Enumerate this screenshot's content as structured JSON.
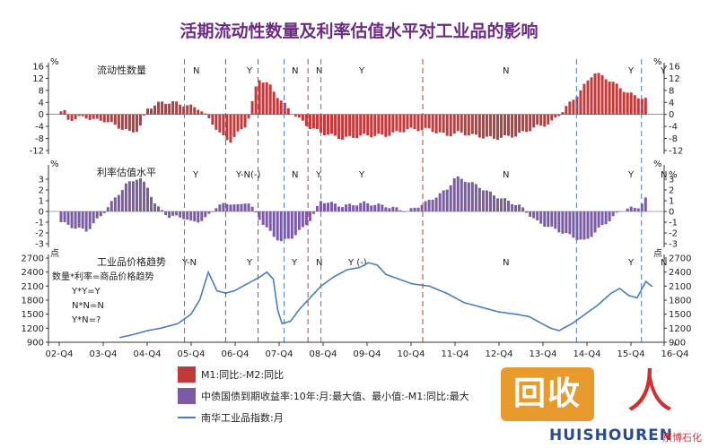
{
  "title": "活期流动性数量及利率估值水平对工业品的影响",
  "chart_data": {
    "type": "bar+line",
    "x_categories": [
      "02-Q4",
      "03-Q4",
      "04-Q4",
      "05-Q4",
      "06-Q4",
      "07-Q4",
      "08-Q4",
      "09-Q4",
      "10-Q4",
      "11-Q4",
      "12-Q4",
      "13-Q4",
      "14-Q4",
      "15-Q4",
      "16-Q4"
    ],
    "panels": [
      {
        "id": "liquidity",
        "title": "流动性数量",
        "unit": "%",
        "ylim": [
          -12,
          16
        ],
        "ticks": [
          "16",
          "12",
          "8",
          "4",
          "0",
          "-4",
          "-8",
          "-12"
        ],
        "tick_values": [
          16,
          12,
          8,
          4,
          0,
          -4,
          -8,
          -12
        ],
        "regimes": [
          "N",
          "Y",
          "N",
          "N",
          "Y",
          "N",
          "Y",
          "Y"
        ],
        "series_name": "M1:同比:-M2:同比",
        "color": "#c0393b",
        "anchors": [
          [
            0,
            1
          ],
          [
            0.08,
            1
          ],
          [
            0.15,
            -2
          ],
          [
            0.4,
            -1
          ],
          [
            0.6,
            -1
          ],
          [
            0.8,
            -2
          ],
          [
            1,
            -2
          ],
          [
            1.3,
            -4
          ],
          [
            1.6,
            -6
          ],
          [
            1.8,
            -5
          ],
          [
            2,
            2
          ],
          [
            2.3,
            4
          ],
          [
            2.6,
            4
          ],
          [
            2.9,
            3
          ],
          [
            3.2,
            2
          ],
          [
            3.5,
            -3
          ],
          [
            3.7,
            -7
          ],
          [
            3.9,
            -9
          ],
          [
            4.1,
            -6
          ],
          [
            4.3,
            -3
          ],
          [
            4.55,
            12
          ],
          [
            4.8,
            10
          ],
          [
            5.0,
            6
          ],
          [
            5.3,
            1
          ],
          [
            5.7,
            -4
          ],
          [
            6,
            -6
          ],
          [
            6.5,
            -8
          ],
          [
            7,
            -7
          ],
          [
            7.5,
            -7
          ],
          [
            8,
            -5
          ],
          [
            8.5,
            -5
          ],
          [
            8.9,
            -7
          ],
          [
            9.2,
            -6
          ],
          [
            9.5,
            -7
          ],
          [
            10,
            -8
          ],
          [
            10.5,
            -7
          ],
          [
            11,
            -4
          ],
          [
            11.3,
            -3
          ],
          [
            11.7,
            3
          ],
          [
            12,
            8
          ],
          [
            12.3,
            14
          ],
          [
            12.6,
            12
          ],
          [
            12.9,
            9
          ],
          [
            13.1,
            7
          ],
          [
            13.3,
            6
          ],
          [
            13.5,
            5
          ]
        ]
      },
      {
        "id": "rate",
        "title": "利率估值水平",
        "unit": "%",
        "ylim": [
          -3,
          4
        ],
        "ticks": [
          "3",
          "2",
          "1",
          "0",
          "-1",
          "-2",
          "-3"
        ],
        "tick_values": [
          3,
          2,
          1,
          0,
          -1,
          -2,
          -3
        ],
        "regimes": [
          "Y",
          "Y-N(-)",
          "N",
          "Y",
          "Y",
          "N",
          "Y",
          "N"
        ],
        "regime_tail": "%",
        "series_name": "中债国债到期收益率:10年:月:最大值、最小值:-M1:同比:最大",
        "color": "#7b5aa6",
        "anchors": [
          [
            0,
            -1
          ],
          [
            0.3,
            -1.5
          ],
          [
            0.6,
            -1.8
          ],
          [
            0.9,
            -0.5
          ],
          [
            1.2,
            1
          ],
          [
            1.5,
            2.5
          ],
          [
            1.8,
            3.2
          ],
          [
            2,
            2.2
          ],
          [
            2.2,
            0.5
          ],
          [
            2.5,
            -0.5
          ],
          [
            2.8,
            -0.5
          ],
          [
            3,
            -1
          ],
          [
            3.3,
            -0.8
          ],
          [
            3.6,
            0.5
          ],
          [
            3.9,
            0.8
          ],
          [
            4.1,
            0.5
          ],
          [
            4.3,
            1
          ],
          [
            4.6,
            -0.8
          ],
          [
            4.9,
            -2.3
          ],
          [
            5.1,
            -2.8
          ],
          [
            5.3,
            -2.5
          ],
          [
            5.6,
            -1.5
          ],
          [
            5.8,
            -0.5
          ],
          [
            6,
            1
          ],
          [
            6.5,
            0.5
          ],
          [
            7,
            0.8
          ],
          [
            7.5,
            0.5
          ],
          [
            8,
            0
          ],
          [
            8.5,
            1
          ],
          [
            8.9,
            2
          ],
          [
            9.1,
            3.2
          ],
          [
            9.4,
            2.8
          ],
          [
            9.7,
            2.2
          ],
          [
            10,
            1.5
          ],
          [
            10.3,
            1
          ],
          [
            10.6,
            0.5
          ],
          [
            11,
            -1
          ],
          [
            11.3,
            -1.5
          ],
          [
            11.6,
            -2
          ],
          [
            11.9,
            -2.5
          ],
          [
            12.1,
            -2.8
          ],
          [
            12.3,
            -2
          ],
          [
            12.6,
            -1
          ],
          [
            12.9,
            0
          ],
          [
            13.1,
            0.3
          ],
          [
            13.3,
            0.3
          ],
          [
            13.5,
            1.2
          ]
        ]
      },
      {
        "id": "price",
        "title": "工业品价格趋势",
        "unit": "点",
        "ylim": [
          900,
          2700
        ],
        "ticks": [
          "2700",
          "2400",
          "2100",
          "1800",
          "1500",
          "1200",
          "900"
        ],
        "tick_values": [
          2700,
          2400,
          2100,
          1800,
          1500,
          1200,
          900
        ],
        "regimes": [
          "Y-N",
          "Y",
          "Y",
          "N",
          "Y (-)",
          "N",
          "Y",
          "N"
        ],
        "series_name": "南华工业品指数:月",
        "color": "#4a7cc4",
        "anchors": [
          [
            1.35,
            1000
          ],
          [
            1.6,
            1050
          ],
          [
            2,
            1150
          ],
          [
            2.3,
            1200
          ],
          [
            2.7,
            1300
          ],
          [
            3,
            1500
          ],
          [
            3.2,
            1800
          ],
          [
            3.4,
            2400
          ],
          [
            3.6,
            2000
          ],
          [
            3.8,
            1950
          ],
          [
            4,
            2000
          ],
          [
            4.3,
            2150
          ],
          [
            4.6,
            2300
          ],
          [
            4.75,
            2400
          ],
          [
            4.9,
            2250
          ],
          [
            5.0,
            1600
          ],
          [
            5.1,
            1300
          ],
          [
            5.3,
            1350
          ],
          [
            5.5,
            1600
          ],
          [
            5.8,
            1900
          ],
          [
            6,
            2100
          ],
          [
            6.3,
            2300
          ],
          [
            6.6,
            2450
          ],
          [
            6.9,
            2500
          ],
          [
            7.1,
            2600
          ],
          [
            7.3,
            2550
          ],
          [
            7.5,
            2350
          ],
          [
            7.8,
            2250
          ],
          [
            8.1,
            2150
          ],
          [
            8.5,
            2100
          ],
          [
            8.9,
            1950
          ],
          [
            9.3,
            1750
          ],
          [
            9.7,
            1650
          ],
          [
            10.1,
            1550
          ],
          [
            10.5,
            1500
          ],
          [
            10.8,
            1450
          ],
          [
            11,
            1350
          ],
          [
            11.3,
            1200
          ],
          [
            11.5,
            1150
          ],
          [
            11.8,
            1300
          ],
          [
            12.1,
            1500
          ],
          [
            12.4,
            1700
          ],
          [
            12.7,
            1950
          ],
          [
            12.9,
            2050
          ],
          [
            13.1,
            1900
          ],
          [
            13.3,
            1850
          ],
          [
            13.5,
            2200
          ],
          [
            13.7,
            2050
          ]
        ]
      }
    ],
    "formula": [
      "数量*利率=商品价格趋势",
      "Y*Y=Y",
      "N*N=N",
      "Y*N=?"
    ],
    "vlines_red": [
      3.8,
      4.55,
      5.7,
      8.35
    ],
    "vlines_blue": [
      2.85,
      5.15,
      6.0,
      11.9,
      13.4
    ],
    "legend": [
      {
        "label": "M1:同比:-M2:同比",
        "color": "#c0393b",
        "kind": "bar"
      },
      {
        "label": "中债国债到期收益率:10年:月:最大值、最小值:-M1:同比:最大",
        "color": "#7b5aa6",
        "kind": "bar"
      },
      {
        "label": "南华工业品指数:月",
        "color": "#4a7cc4",
        "kind": "line"
      }
    ]
  },
  "watermark": {
    "logo_text": "回收",
    "brand_text": "HUISHOUREN",
    "sub_text": "京博石化"
  }
}
